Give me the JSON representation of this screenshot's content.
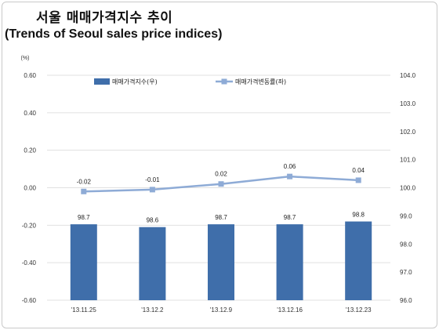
{
  "title": "서울 매매가격지수 추이",
  "subtitle": "(Trends of Seoul sales price indices)",
  "colors": {
    "bar": "#3f6eaa",
    "line": "#8eabd6",
    "grid": "#e0e0e0"
  },
  "chart_data": {
    "type": "bar+line",
    "categories": [
      "'13.11.25",
      "'13.12.2",
      "'13.12.9",
      "'13.12.16",
      "'13.12.23"
    ],
    "left_axis": {
      "unit_label": "(%)",
      "ylim": [
        -0.6,
        0.6
      ],
      "ticks": [
        "0.60",
        "0.40",
        "0.20",
        "0.00",
        "-0.20",
        "-0.40",
        "-0.60"
      ]
    },
    "right_axis": {
      "ylim": [
        96.0,
        104.0
      ],
      "ticks": [
        "104.0",
        "103.0",
        "102.0",
        "101.0",
        "100.0",
        "99.0",
        "98.0",
        "97.0",
        "96.0"
      ]
    },
    "series": [
      {
        "name": "매매가격지수(우)",
        "kind": "bar",
        "axis": "right",
        "values": [
          98.7,
          98.6,
          98.7,
          98.7,
          98.8
        ],
        "labels": [
          "98.7",
          "98.6",
          "98.7",
          "98.7",
          "98.8"
        ]
      },
      {
        "name": "매매가격변동률(좌)",
        "kind": "line",
        "axis": "left",
        "values": [
          -0.02,
          -0.01,
          0.02,
          0.06,
          0.04
        ],
        "labels": [
          "-0.02",
          "-0.01",
          "0.02",
          "0.06",
          "0.04"
        ]
      }
    ],
    "legend_position": "top",
    "grid": true
  }
}
